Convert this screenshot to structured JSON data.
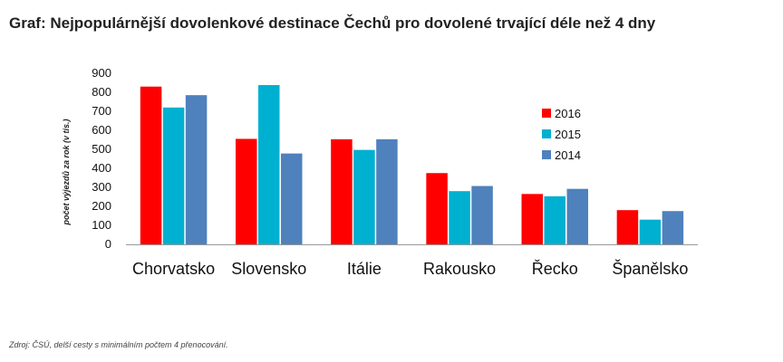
{
  "title": "Graf: Nejpopulárnější dovolenkové destinace Čechů pro dovolené trvající déle než 4 dny",
  "source": "Zdroj: ČSÚ, delší cesty s minimálním počtem 4 přenocování.",
  "chart_data": {
    "type": "bar",
    "title": "Graf: Nejpopulárnější dovolenkové destinace Čechů pro dovolené trvající déle než 4 dny",
    "xlabel": "",
    "ylabel": "počet výjezdů za rok (v tis.)",
    "ylim": [
      0,
      900
    ],
    "yticks": [
      0,
      100,
      200,
      300,
      400,
      500,
      600,
      700,
      800,
      900
    ],
    "grid": false,
    "legend_position": "top-right",
    "categories": [
      "Chorvatsko",
      "Slovensko",
      "Itálie",
      "Rakousko",
      "Řecko",
      "Španělsko"
    ],
    "series": [
      {
        "name": "2016",
        "color": "#ff0000",
        "values": [
          830,
          555,
          553,
          375,
          265,
          180
        ]
      },
      {
        "name": "2015",
        "color": "#00b0d0",
        "values": [
          720,
          838,
          497,
          280,
          253,
          130
        ]
      },
      {
        "name": "2014",
        "color": "#4f81bd",
        "values": [
          785,
          478,
          553,
          307,
          292,
          175
        ]
      }
    ]
  }
}
